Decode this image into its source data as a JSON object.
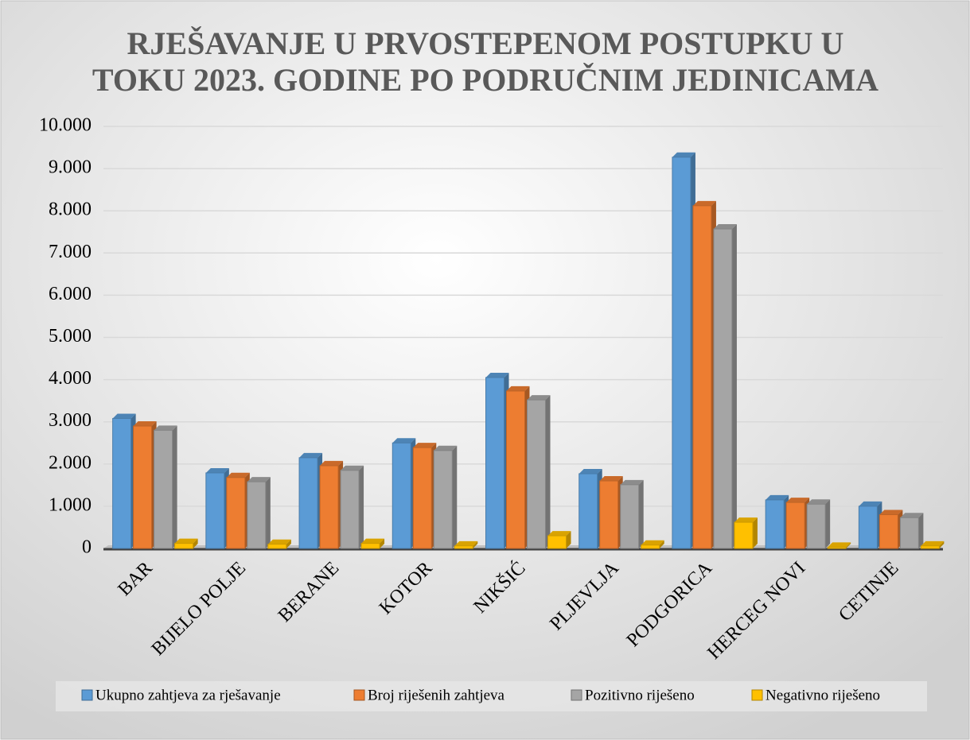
{
  "chart_data": {
    "type": "bar",
    "title": "RJEŠAVANJE U PRVOSTEPENOM POSTUPKU U TOKU 2023. GODINE PO PODRUČNIM JEDINICAMA",
    "categories": [
      "BAR",
      "BIJELO POLJE",
      "BERANE",
      "KOTOR",
      "NIKŠIĆ",
      "PLJEVLJA",
      "PODGORICA",
      "HERCEG NOVI",
      "CETINJE"
    ],
    "series": [
      {
        "name": "Ukupno zahtjeva za rješavanje",
        "color": "#5b9bd5",
        "values": [
          3080,
          1790,
          2150,
          2500,
          4050,
          1770,
          9270,
          1150,
          1000
        ]
      },
      {
        "name": "Broj riješenih zahtjeva",
        "color": "#ed7d31",
        "values": [
          2900,
          1680,
          1960,
          2390,
          3730,
          1600,
          8120,
          1090,
          800
        ]
      },
      {
        "name": "Pozitivno riješeno",
        "color": "#a5a5a5",
        "values": [
          2800,
          1580,
          1850,
          2320,
          3520,
          1510,
          7570,
          1050,
          730
        ]
      },
      {
        "name": "Negativno riješeno",
        "color": "#ffc000",
        "values": [
          120,
          100,
          120,
          60,
          300,
          80,
          620,
          30,
          60
        ]
      }
    ],
    "ylim": [
      0,
      10000
    ],
    "yticks": [
      0,
      {
        "value": 1000,
        "label": "1.000"
      },
      {
        "value": 2000,
        "label": "2.000"
      },
      {
        "value": 3000,
        "label": "3.000"
      },
      {
        "value": 4000,
        "label": "4.000"
      },
      {
        "value": 5000,
        "label": "5.000"
      },
      {
        "value": 6000,
        "label": "6.000"
      },
      {
        "value": 7000,
        "label": "7.000"
      },
      {
        "value": 8000,
        "label": "8.000"
      },
      {
        "value": 9000,
        "label": "9.000"
      },
      {
        "value": 10000,
        "label": "10.000"
      }
    ],
    "grid": true,
    "legend": "bottom"
  }
}
